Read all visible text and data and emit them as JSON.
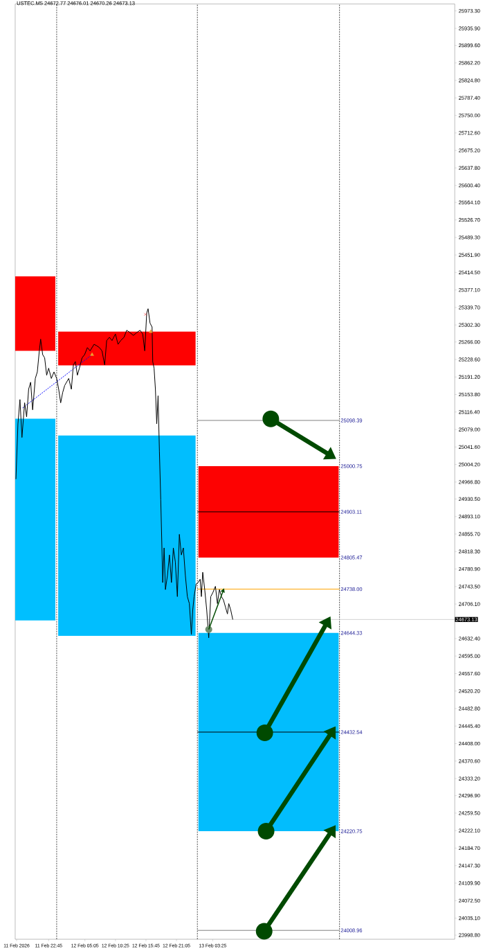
{
  "chart_data": {
    "type": "line",
    "title": "USTEC.M5 24672.77 24676.01 24670.26 24673.13",
    "marker": "none",
    "xlim": [
      "2026-02-11T16:54",
      "2026-02-14T21:42"
    ],
    "ylim": [
      23990,
      25988
    ],
    "xticks": [
      {
        "value": "2026-02-11T17:09",
        "label": "11 Feb 2026"
      },
      {
        "value": "2026-02-11T22:45",
        "label": "11 Feb 22:45"
      },
      {
        "value": "2026-02-12T05:05",
        "label": "12 Feb 05:05"
      },
      {
        "value": "2026-02-12T10:25",
        "label": "12 Feb 10:25"
      },
      {
        "value": "2026-02-12T15:45",
        "label": "12 Feb 15:45"
      },
      {
        "value": "2026-02-12T21:05",
        "label": "12 Feb 21:05"
      },
      {
        "value": "2026-02-13T03:25",
        "label": "13 Feb 03:25"
      }
    ],
    "yticks": [
      {
        "value": 25973.3,
        "label": "25973.30"
      },
      {
        "value": 25935.9,
        "label": "25935.90"
      },
      {
        "value": 25899.6,
        "label": "25899.60"
      },
      {
        "value": 25862.2,
        "label": "25862.20"
      },
      {
        "value": 25824.8,
        "label": "25824.80"
      },
      {
        "value": 25787.4,
        "label": "25787.40"
      },
      {
        "value": 25750,
        "label": "25750.00"
      },
      {
        "value": 25712.6,
        "label": "25712.60"
      },
      {
        "value": 25675.2,
        "label": "25675.20"
      },
      {
        "value": 25637.8,
        "label": "25637.80"
      },
      {
        "value": 25600.4,
        "label": "25600.40"
      },
      {
        "value": 25564.1,
        "label": "25564.10"
      },
      {
        "value": 25526.7,
        "label": "25526.70"
      },
      {
        "value": 25489.3,
        "label": "25489.30"
      },
      {
        "value": 25451.9,
        "label": "25451.90"
      },
      {
        "value": 25414.5,
        "label": "25414.50"
      },
      {
        "value": 25377.1,
        "label": "25377.10"
      },
      {
        "value": 25339.7,
        "label": "25339.70"
      },
      {
        "value": 25302.3,
        "label": "25302.30"
      },
      {
        "value": 25266,
        "label": "25266.00"
      },
      {
        "value": 25228.6,
        "label": "25228.60"
      },
      {
        "value": 25191.2,
        "label": "25191.20"
      },
      {
        "value": 25153.8,
        "label": "25153.80"
      },
      {
        "value": 25116.4,
        "label": "25116.40"
      },
      {
        "value": 25079,
        "label": "25079.00"
      },
      {
        "value": 25041.6,
        "label": "25041.60"
      },
      {
        "value": 25004.2,
        "label": "25004.20"
      },
      {
        "value": 24966.8,
        "label": "24966.80"
      },
      {
        "value": 24930.5,
        "label": "24930.50"
      },
      {
        "value": 24893.1,
        "label": "24893.10"
      },
      {
        "value": 24855.7,
        "label": "24855.70"
      },
      {
        "value": 24818.3,
        "label": "24818.30"
      },
      {
        "value": 24780.9,
        "label": "24780.90"
      },
      {
        "value": 24743.5,
        "label": "24743.50"
      },
      {
        "value": 24706.1,
        "label": "24706.10"
      },
      {
        "value": 24632.4,
        "label": "24632.40"
      },
      {
        "value": 24595,
        "label": "24595.00"
      },
      {
        "value": 24557.6,
        "label": "24557.60"
      },
      {
        "value": 24520.2,
        "label": "24520.20"
      },
      {
        "value": 24482.8,
        "label": "24482.80"
      },
      {
        "value": 24445.4,
        "label": "24445.40"
      },
      {
        "value": 24408,
        "label": "24408.00"
      },
      {
        "value": 24370.6,
        "label": "24370.60"
      },
      {
        "value": 24333.2,
        "label": "24333.20"
      },
      {
        "value": 24296.9,
        "label": "24296.90"
      },
      {
        "value": 24259.5,
        "label": "24259.50"
      },
      {
        "value": 24222.1,
        "label": "24222.10"
      },
      {
        "value": 24184.7,
        "label": "24184.70"
      },
      {
        "value": 24147.3,
        "label": "24147.30"
      },
      {
        "value": 24109.9,
        "label": "24109.90"
      },
      {
        "value": 24072.5,
        "label": "24072.50"
      },
      {
        "value": 24035.1,
        "label": "24035.10"
      },
      {
        "value": 23998.8,
        "label": "23998.80"
      }
    ],
    "series": [
      {
        "type": "line",
        "color": "#ff0000",
        "x": [
          "2026-02-11T16:54",
          "2026-02-11T23:55"
        ],
        "values": [
          null,
          null
        ],
        "lower": [
          25247,
          25247
        ],
        "upper": [
          25406,
          25406
        ]
      },
      {
        "type": "line",
        "color": "#00bfff",
        "x": [
          "2026-02-11T16:54",
          "2026-02-11T23:55"
        ],
        "values": [
          null,
          null
        ],
        "lower": [
          24671,
          24671
        ],
        "upper": [
          25102,
          25102
        ]
      },
      {
        "type": "line",
        "color": "#fe0101",
        "x": [
          "2026-02-12T00:25",
          "2026-02-13T00:25"
        ],
        "values": [
          null,
          null
        ],
        "lower": [
          25216,
          25216
        ],
        "upper": [
          25288,
          25288
        ]
      },
      {
        "type": "line",
        "color": "#01befe",
        "x": [
          "2026-02-12T00:25",
          "2026-02-13T00:25"
        ],
        "values": [
          null,
          null
        ],
        "lower": [
          24638,
          24638
        ],
        "upper": [
          25066,
          25066
        ]
      },
      {
        "type": "line",
        "color": "#fd0202",
        "x": [
          "2026-02-13T00:55",
          "2026-02-14T01:25"
        ],
        "values": [
          null,
          null
        ],
        "lower": [
          24805.47,
          24805.47
        ],
        "upper": [
          25000.75,
          25000.75
        ]
      },
      {
        "type": "line",
        "color": "#02bdfd",
        "x": [
          "2026-02-13T00:55",
          "2026-02-14T01:25"
        ],
        "values": [
          null,
          null
        ],
        "lower": [
          24220.75,
          24220.75
        ],
        "upper": [
          24644.33,
          24644.33
        ]
      },
      {
        "type": "line",
        "color": "#808080",
        "x": [
          "2026-02-13T00:44",
          "2026-02-14T01:34"
        ],
        "values": [
          25098.39,
          25098.39
        ]
      },
      {
        "type": "line",
        "color": "#000000",
        "x": [
          "2026-02-13T00:44",
          "2026-02-14T01:34"
        ],
        "values": [
          24903.11,
          24903.11
        ]
      },
      {
        "type": "line",
        "color": "#ffa500",
        "x": [
          "2026-02-13T00:44",
          "2026-02-14T01:34"
        ],
        "values": [
          24738.0,
          24738.0
        ]
      },
      {
        "type": "line",
        "color": "#000000",
        "x": [
          "2026-02-13T00:44",
          "2026-02-14T01:34"
        ],
        "values": [
          24432.54,
          24432.54
        ]
      },
      {
        "type": "line",
        "color": "#808080",
        "x": [
          "2026-02-13T00:44",
          "2026-02-14T01:34"
        ],
        "values": [
          24008.96,
          24008.96
        ]
      },
      {
        "type": "line",
        "color": "#0000ff",
        "line_style": "dashed",
        "x": [
          "2026-02-11T18:12",
          "2026-02-12T06:20"
        ],
        "values": [
          25125,
          25239
        ]
      },
      {
        "color": "#000000",
        "x": [
          "2026-02-11T17:02",
          "2026-02-11T17:23",
          "2026-02-11T17:44",
          "2026-02-11T18:05",
          "2026-02-11T18:33",
          "2026-02-11T18:54",
          "2026-02-11T19:15",
          "2026-02-11T19:36",
          "2026-02-11T19:57",
          "2026-02-11T20:25",
          "2026-02-11T20:46",
          "2026-02-11T21:07",
          "2026-02-11T21:21",
          "2026-02-11T21:42",
          "2026-02-11T22:03",
          "2026-02-11T22:24",
          "2026-02-11T22:45",
          "2026-02-11T23:13",
          "2026-02-11T23:41",
          "2026-02-12T00:09",
          "2026-02-12T00:30",
          "2026-02-12T00:51",
          "2026-02-12T01:12",
          "2026-02-12T01:33",
          "2026-02-12T02:15",
          "2026-02-12T02:43",
          "2026-02-12T03:04",
          "2026-02-12T03:25",
          "2026-02-12T03:46",
          "2026-02-12T04:07",
          "2026-02-12T04:35",
          "2026-02-12T05:02",
          "2026-02-12T05:31",
          "2026-02-12T05:59",
          "2026-02-12T06:41",
          "2026-02-12T07:08",
          "2026-02-12T07:37",
          "2026-02-12T08:04",
          "2026-02-12T08:32",
          "2026-02-12T08:53",
          "2026-02-12T09:22",
          "2026-02-12T09:49",
          "2026-02-12T10:25",
          "2026-02-12T10:52",
          "2026-02-12T11:20",
          "2026-02-12T11:55",
          "2026-02-12T12:23",
          "2026-02-12T12:58",
          "2026-02-12T13:33",
          "2026-02-12T14:08",
          "2026-02-12T14:43",
          "2026-02-12T15:11",
          "2026-02-12T15:32",
          "2026-02-12T15:53",
          "2026-02-12T16:07",
          "2026-02-12T16:28",
          "2026-02-12T16:49",
          "2026-02-12T16:56",
          "2026-02-12T17:10",
          "2026-02-12T17:24",
          "2026-02-12T17:38",
          "2026-02-12T17:52",
          "2026-02-12T18:06",
          "2026-02-12T18:20",
          "2026-02-12T18:41",
          "2026-02-12T18:55",
          "2026-02-12T19:09",
          "2026-02-12T19:30",
          "2026-02-12T19:51",
          "2026-02-12T20:12",
          "2026-02-12T20:32",
          "2026-02-12T20:53",
          "2026-02-12T21:14",
          "2026-02-12T21:35",
          "2026-02-12T21:56",
          "2026-02-12T22:17",
          "2026-02-12T22:38",
          "2026-02-12T22:59",
          "2026-02-12T23:20",
          "2026-02-12T23:41",
          "2026-02-12T23:55",
          "2026-02-13T00:10",
          "2026-02-13T00:31",
          "2026-02-13T00:52",
          "2026-02-13T01:13",
          "2026-02-13T01:26",
          "2026-02-13T01:40",
          "2026-02-13T02:01",
          "2026-02-13T02:22",
          "2026-02-13T02:43",
          "2026-02-13T03:04",
          "2026-02-13T03:25",
          "2026-02-13T03:53",
          "2026-02-13T04:14",
          "2026-02-13T04:35",
          "2026-02-13T04:56",
          "2026-02-13T05:17",
          "2026-02-13T05:38",
          "2026-02-13T05:59",
          "2026-02-13T06:13",
          "2026-02-13T06:34",
          "2026-02-13T06:55"
        ],
        "values": [
          24973,
          25091,
          25143,
          25062,
          25136,
          25106,
          25165,
          25180,
          25121,
          25188,
          25202,
          25247,
          25272,
          25239,
          25232,
          25195,
          25210,
          25188,
          25202,
          25188,
          25165,
          25136,
          25158,
          25173,
          25188,
          25165,
          25217,
          25224,
          25195,
          25210,
          25232,
          25239,
          25254,
          25247,
          25261,
          25258,
          25254,
          25247,
          25217,
          25269,
          25276,
          25269,
          25283,
          25261,
          25269,
          25276,
          25291,
          25286,
          25280,
          25286,
          25291,
          25283,
          25247,
          25328,
          25337,
          25306,
          25298,
          25224,
          25210,
          25165,
          25091,
          25151,
          25032,
          24929,
          24752,
          24826,
          24737,
          24767,
          24811,
          24752,
          24826,
          24796,
          24722,
          24855,
          24811,
          24826,
          24767,
          24722,
          24707,
          24641,
          24693,
          24722,
          24749,
          24752,
          24759,
          24722,
          24774,
          24737,
          24693,
          24634,
          24722,
          24730,
          24744,
          24707,
          24737,
          24722,
          24715,
          24700,
          24685,
          24707,
          24693,
          24673
        ]
      },
      {
        "type": "scatter",
        "color": "#f0a030",
        "marker": "triangle",
        "x": [
          "2026-02-12T06:20",
          "2026-02-12T16:35"
        ],
        "values": [
          25239,
          25288
        ]
      },
      {
        "type": "scatter",
        "color": "#ff0000",
        "marker": "cross",
        "x": [
          "2026-02-12T15:39"
        ],
        "values": [
          25325
        ]
      }
    ],
    "ref_lines": [
      {
        "axis": "x",
        "value": "2026-02-12T00:09",
        "color": "#000000",
        "line_style": "dashed"
      },
      {
        "axis": "x",
        "value": "2026-02-13T00:44",
        "color": "#000000",
        "line_style": "dashed"
      },
      {
        "axis": "x",
        "value": "2026-02-14T01:34",
        "color": "#000000",
        "line_style": "dashed"
      },
      {
        "axis": "y",
        "value": 24673.13,
        "label": "24673.13",
        "color": "#c0c0c0"
      }
    ],
    "annotations": [
      {
        "text": "25098.39",
        "x": "2026-02-14T01:34",
        "y": 25098.39
      },
      {
        "text": "25000.75",
        "x": "2026-02-14T01:34",
        "y": 25000.75
      },
      {
        "text": "24903.11",
        "x": "2026-02-14T01:34",
        "y": 24903.11
      },
      {
        "text": "24805.47",
        "x": "2026-02-14T01:34",
        "y": 24805.47
      },
      {
        "text": "24738.00",
        "x": "2026-02-14T01:34",
        "y": 24738.0
      },
      {
        "text": "24644.33",
        "x": "2026-02-14T01:34",
        "y": 24644.33
      },
      {
        "text": "24432.54",
        "x": "2026-02-14T01:34",
        "y": 24432.54
      },
      {
        "text": "24220.75",
        "x": "2026-02-14T01:34",
        "y": 24220.75
      },
      {
        "text": "24008.96",
        "x": "2026-02-14T01:34",
        "y": 24008.96
      }
    ]
  }
}
